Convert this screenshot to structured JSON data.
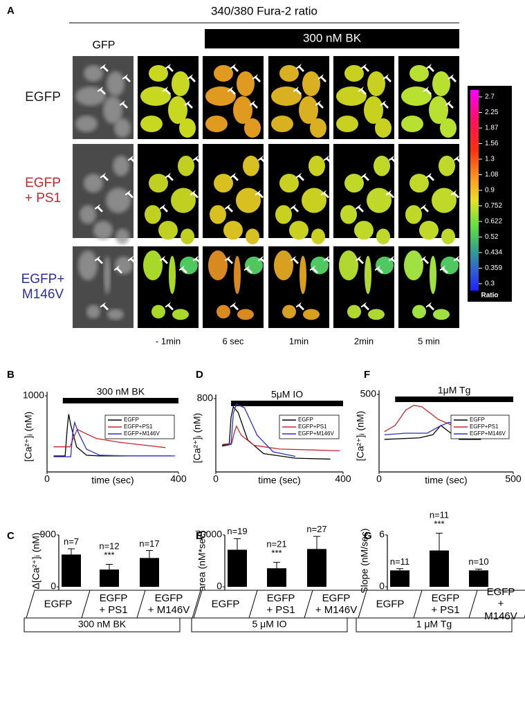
{
  "panel_a": {
    "label": "A",
    "title": "340/380 Fura-2 ratio",
    "treatment": "300 nM BK",
    "column_header": "GFP",
    "rows": [
      "EGFP",
      "EGFP\n+ PS1",
      "EGFP+\nM146V"
    ],
    "row_colors": [
      "#222222",
      "#c0282d",
      "#2b2e9a"
    ],
    "times": [
      "- 1min",
      "6 sec",
      "1min",
      "2min",
      "5 min"
    ],
    "colorbar": {
      "ticks": [
        2.7,
        2.25,
        1.87,
        1.56,
        1.3,
        1.08,
        0.9,
        0.752,
        0.622,
        0.52,
        0.434,
        0.359,
        0.3
      ],
      "label": "Ratio"
    }
  },
  "chart_data": [
    {
      "type": "line",
      "label": "B",
      "stimulus": "300 nM BK",
      "ylabel": "[Ca²⁺]ᵢ (nM)",
      "xlabel": "time (sec)",
      "xlim": [
        0,
        400
      ],
      "xticks": [
        0,
        400
      ],
      "ylim": [
        0,
        1000
      ],
      "yticks": [
        1000
      ],
      "series": [
        {
          "name": "EGFP",
          "color": "#000000",
          "x": [
            20,
            55,
            62,
            66,
            72,
            90,
            120,
            160,
            250,
            380
          ],
          "values": [
            210,
            210,
            600,
            760,
            620,
            330,
            220,
            210,
            210,
            210
          ]
        },
        {
          "name": "EGFP+PS1",
          "color": "#c0282d",
          "x": [
            20,
            70,
            78,
            92,
            110,
            150,
            220,
            300,
            360
          ],
          "values": [
            330,
            330,
            420,
            560,
            520,
            440,
            390,
            350,
            320
          ]
        },
        {
          "name": "EGFP+M146V",
          "color": "#2b2ec8",
          "x": [
            20,
            72,
            78,
            84,
            95,
            120,
            160,
            250,
            390
          ],
          "values": [
            200,
            200,
            500,
            650,
            520,
            300,
            220,
            210,
            210
          ]
        }
      ]
    },
    {
      "type": "line",
      "label": "D",
      "stimulus": "5μM IO",
      "ylabel": "[Ca²⁺]ᵢ (nM)",
      "xlabel": "time (sec)",
      "xlim": [
        0,
        400
      ],
      "xticks": [
        0,
        400
      ],
      "ylim": [
        0,
        800
      ],
      "yticks": [
        800
      ],
      "series": [
        {
          "name": "EGFP",
          "color": "#000000",
          "x": [
            20,
            42,
            48,
            55,
            70,
            100,
            150,
            250,
            360
          ],
          "values": [
            290,
            300,
            600,
            710,
            650,
            350,
            200,
            150,
            140
          ]
        },
        {
          "name": "EGFP+PS1",
          "color": "#c0282d",
          "x": [
            20,
            50,
            58,
            65,
            80,
            120,
            200,
            300,
            390
          ],
          "values": [
            300,
            310,
            430,
            500,
            400,
            290,
            250,
            240,
            230
          ]
        },
        {
          "name": "EGFP+M146V",
          "color": "#2b2ec8",
          "x": [
            20,
            48,
            55,
            65,
            90,
            130,
            180,
            250
          ],
          "values": [
            280,
            300,
            640,
            740,
            700,
            400,
            220,
            170
          ]
        }
      ]
    },
    {
      "type": "line",
      "label": "F",
      "stimulus": "1μM Tg",
      "ylabel": "[Ca²⁺]ᵢ (nM)",
      "xlabel": "time (sec)",
      "xlim": [
        0,
        500
      ],
      "xticks": [
        0,
        500
      ],
      "ylim": [
        0,
        500
      ],
      "yticks": [
        500
      ],
      "series": [
        {
          "name": "EGFP",
          "color": "#000000",
          "x": [
            20,
            150,
            200,
            230,
            260,
            300,
            380
          ],
          "values": [
            210,
            220,
            240,
            300,
            260,
            210,
            210
          ]
        },
        {
          "name": "EGFP+PS1",
          "color": "#c0282d",
          "x": [
            20,
            60,
            100,
            130,
            160,
            220,
            300,
            400,
            450
          ],
          "values": [
            260,
            300,
            400,
            430,
            420,
            340,
            280,
            240,
            230
          ]
        },
        {
          "name": "EGFP+M146V",
          "color": "#2b2ec8",
          "x": [
            20,
            100,
            180,
            220,
            260,
            300,
            350,
            400,
            480
          ],
          "values": [
            240,
            250,
            250,
            290,
            320,
            300,
            260,
            240,
            240
          ]
        }
      ]
    },
    {
      "type": "bar",
      "label": "C",
      "ylabel": "Δ[Ca²⁺]ᵢ (nM)",
      "ylim": [
        0,
        900
      ],
      "yticks": [
        0,
        900
      ],
      "categories": [
        "EGFP",
        "EGFP\n+ PS1",
        "EGFP\n+ M146V"
      ],
      "values": [
        560,
        300,
        500
      ],
      "errors": [
        100,
        90,
        130
      ],
      "annotations": [
        "n=7",
        "n=12\n***",
        "n=17"
      ],
      "footer": "300 nM BK",
      "color": "#000000"
    },
    {
      "type": "bar",
      "label": "E",
      "ylabel": "area (nM*sec)",
      "ylim": [
        0,
        70000
      ],
      "yticks": [
        0,
        70000
      ],
      "categories": [
        "EGFP",
        "EGFP\n+ PS1",
        "EGFP\n+ M146V"
      ],
      "values": [
        50000,
        25000,
        51000
      ],
      "errors": [
        15000,
        8000,
        17000
      ],
      "annotations": [
        "n=19",
        "n=21\n***",
        "n=27"
      ],
      "footer": "5 μM IO",
      "color": "#000000"
    },
    {
      "type": "bar",
      "label": "G",
      "ylabel": "Slope (nM/sec)",
      "ylim": [
        0,
        6
      ],
      "yticks": [
        0,
        6
      ],
      "categories": [
        "EGFP",
        "EGFP\n+ PS1",
        "EGFP\n+ M146V"
      ],
      "values": [
        1.9,
        4.2,
        1.9
      ],
      "errors": [
        0.2,
        2,
        0.15
      ],
      "annotations": [
        "n=11",
        "n=11\n***",
        "n=10"
      ],
      "footer": "1 μM Tg",
      "color": "#000000"
    }
  ]
}
